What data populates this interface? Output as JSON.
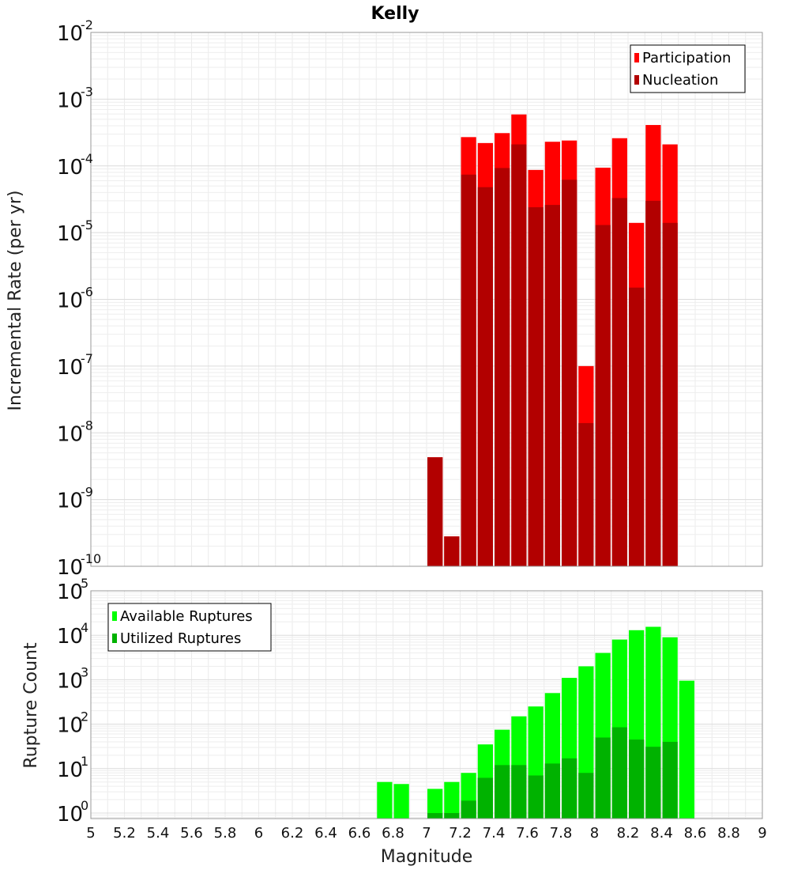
{
  "chart_data": [
    {
      "type": "bar",
      "title": "Kelly",
      "xlabel": "",
      "ylabel": "Incremental Rate (per yr)",
      "yscale": "log",
      "ylim": [
        1e-10,
        0.01
      ],
      "xlim": [
        5,
        9
      ],
      "grid": true,
      "legend_position": "top-right",
      "y_ticks": [
        {
          "base": "10",
          "exp": "-10"
        },
        {
          "base": "10",
          "exp": "-9"
        },
        {
          "base": "10",
          "exp": "-8"
        },
        {
          "base": "10",
          "exp": "-7"
        },
        {
          "base": "10",
          "exp": "-6"
        },
        {
          "base": "10",
          "exp": "-5"
        },
        {
          "base": "10",
          "exp": "-4"
        },
        {
          "base": "10",
          "exp": "-3"
        },
        {
          "base": "10",
          "exp": "-2"
        }
      ],
      "x": [
        7.05,
        7.15,
        7.25,
        7.35,
        7.45,
        7.55,
        7.65,
        7.75,
        7.85,
        7.95,
        8.05,
        8.15,
        8.25,
        8.35,
        8.45
      ],
      "series": [
        {
          "name": "Participation",
          "color": "#ff0000",
          "values": [
            4.3e-09,
            2.8e-10,
            0.00027,
            0.00022,
            0.00031,
            0.00059,
            8.7e-05,
            0.00023,
            0.00024,
            1e-07,
            9.4e-05,
            0.00026,
            1.4e-05,
            0.00041,
            0.00021
          ]
        },
        {
          "name": "Nucleation",
          "color": "#b20000",
          "values": [
            4.3e-09,
            2.8e-10,
            7.4e-05,
            4.8e-05,
            9.3e-05,
            0.00021,
            2.4e-05,
            2.6e-05,
            6.2e-05,
            1.4e-08,
            1.3e-05,
            3.3e-05,
            1.5e-06,
            3e-05,
            1.4e-05
          ]
        }
      ]
    },
    {
      "type": "bar",
      "title": "",
      "xlabel": "Magnitude",
      "ylabel": "Rupture Count",
      "yscale": "log",
      "ylim": [
        0.75,
        100000.0
      ],
      "xlim": [
        5,
        9
      ],
      "grid": true,
      "legend_position": "top-left",
      "y_ticks": [
        {
          "base": "10",
          "exp": "0"
        },
        {
          "base": "10",
          "exp": "1"
        },
        {
          "base": "10",
          "exp": "2"
        },
        {
          "base": "10",
          "exp": "3"
        },
        {
          "base": "10",
          "exp": "4"
        },
        {
          "base": "10",
          "exp": "5"
        }
      ],
      "x_ticks": [
        "5",
        "5.2",
        "5.4",
        "5.6",
        "5.8",
        "6",
        "6.2",
        "6.4",
        "6.6",
        "6.8",
        "7",
        "7.2",
        "7.4",
        "7.6",
        "7.8",
        "8",
        "8.2",
        "8.4",
        "8.6",
        "8.8",
        "9"
      ],
      "x": [
        6.75,
        6.85,
        7.05,
        7.15,
        7.25,
        7.35,
        7.45,
        7.55,
        7.65,
        7.75,
        7.85,
        7.95,
        8.05,
        8.15,
        8.25,
        8.35,
        8.45,
        8.55
      ],
      "series": [
        {
          "name": "Available Ruptures",
          "color": "#00ff00",
          "values": [
            5,
            4.5,
            3.5,
            5,
            8,
            35,
            75,
            150,
            250,
            500,
            1100,
            2000,
            4000,
            8000,
            13000,
            15500,
            9000,
            950
          ]
        },
        {
          "name": "Utilized Ruptures",
          "color": "#00b200",
          "values": [
            0,
            0,
            1,
            1,
            1.9,
            6.2,
            12,
            12,
            7,
            13,
            17,
            8,
            50,
            85,
            45,
            31,
            40,
            0
          ]
        }
      ]
    }
  ]
}
